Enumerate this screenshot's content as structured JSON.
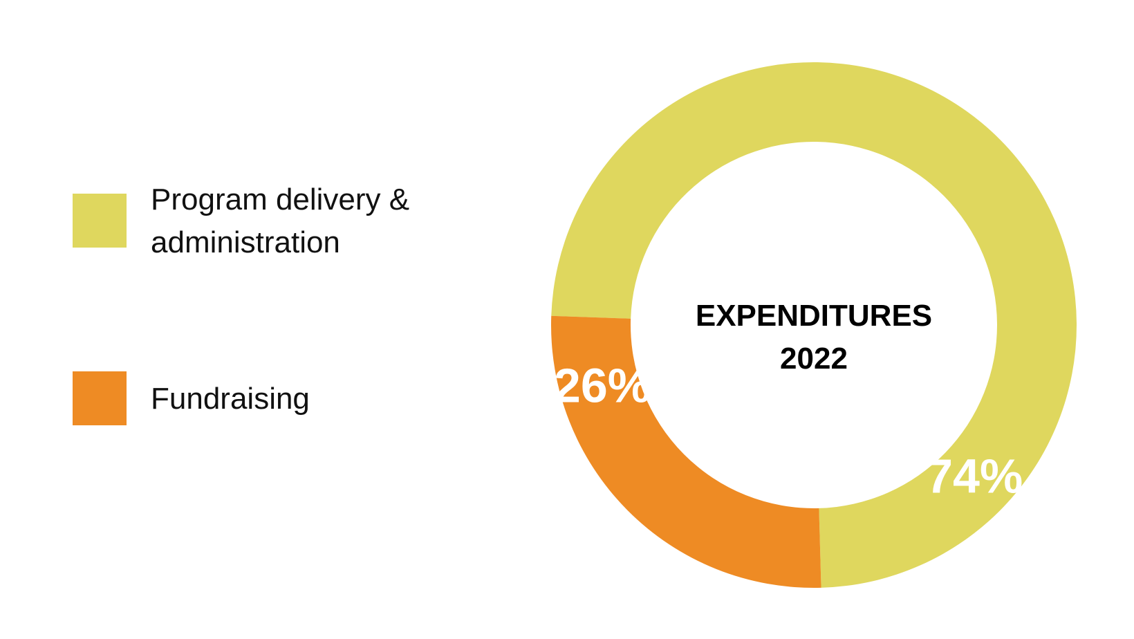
{
  "chart_data": {
    "type": "pie",
    "variant": "donut",
    "title": "EXPENDITURES 2022",
    "title_lines": [
      "EXPENDITURES",
      "2022"
    ],
    "legend_position": "left",
    "series": [
      {
        "name": "Program delivery & administration",
        "legend_lines": [
          "Program delivery &",
          "administration"
        ],
        "value": 74,
        "label": "74%",
        "color": "#DFD75E"
      },
      {
        "name": "Fundraising",
        "legend_lines": [
          "Fundraising"
        ],
        "value": 26,
        "label": "26%",
        "color": "#EE8B24"
      }
    ]
  }
}
